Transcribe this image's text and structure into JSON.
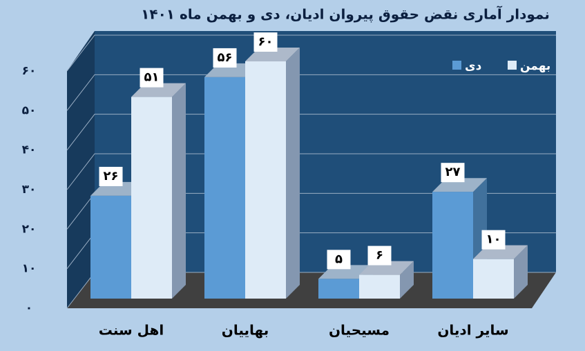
{
  "chart_data": {
    "type": "bar3d",
    "title": "نمودار آماری نقض حقوق پیروان ادیان، دی و بهمن ماه ۱۴۰۱",
    "categories": [
      "اهل سنت",
      "بهاییان",
      "مسیحیان",
      "سایر ادیان"
    ],
    "series": [
      {
        "name": "دی",
        "color": "#5b9bd5",
        "values": [
          26,
          56,
          5,
          27
        ],
        "value_labels": [
          "۲۶",
          "۵۶",
          "۵",
          "۲۷"
        ]
      },
      {
        "name": "بهمن",
        "color": "#deebf7",
        "values": [
          51,
          60,
          6,
          10
        ],
        "value_labels": [
          "۵۱",
          "۶۰",
          "۶",
          "۱۰"
        ]
      }
    ],
    "ylim": [
      0,
      60
    ],
    "yticks": [
      {
        "value": 0,
        "label": "۰"
      },
      {
        "value": 10,
        "label": "۱۰"
      },
      {
        "value": 20,
        "label": "۲۰"
      },
      {
        "value": 30,
        "label": "۳۰"
      },
      {
        "value": 40,
        "label": "۴۰"
      },
      {
        "value": 50,
        "label": "۵۰"
      },
      {
        "value": 60,
        "label": "۶۰"
      }
    ],
    "grid": true
  }
}
